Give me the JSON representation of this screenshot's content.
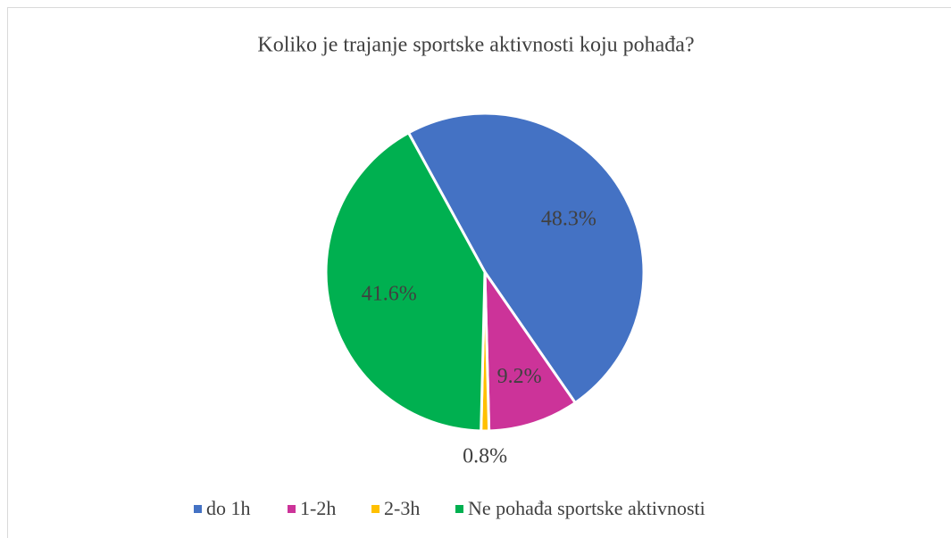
{
  "chart_data": {
    "type": "pie",
    "title": "Koliko je trajanje sportske aktivnosti koju pohađa?",
    "categories": [
      "do 1h",
      "1-2h",
      "2-3h",
      "Ne pohađa sportske aktivnosti"
    ],
    "values": [
      48.3,
      9.2,
      0.8,
      41.6
    ],
    "value_labels": [
      "48.3%",
      "9.2%",
      "0.8%",
      "41.6%"
    ],
    "colors": [
      "#4472c4",
      "#cc3399",
      "#ffc000",
      "#00b050"
    ],
    "legend": "bottom"
  }
}
